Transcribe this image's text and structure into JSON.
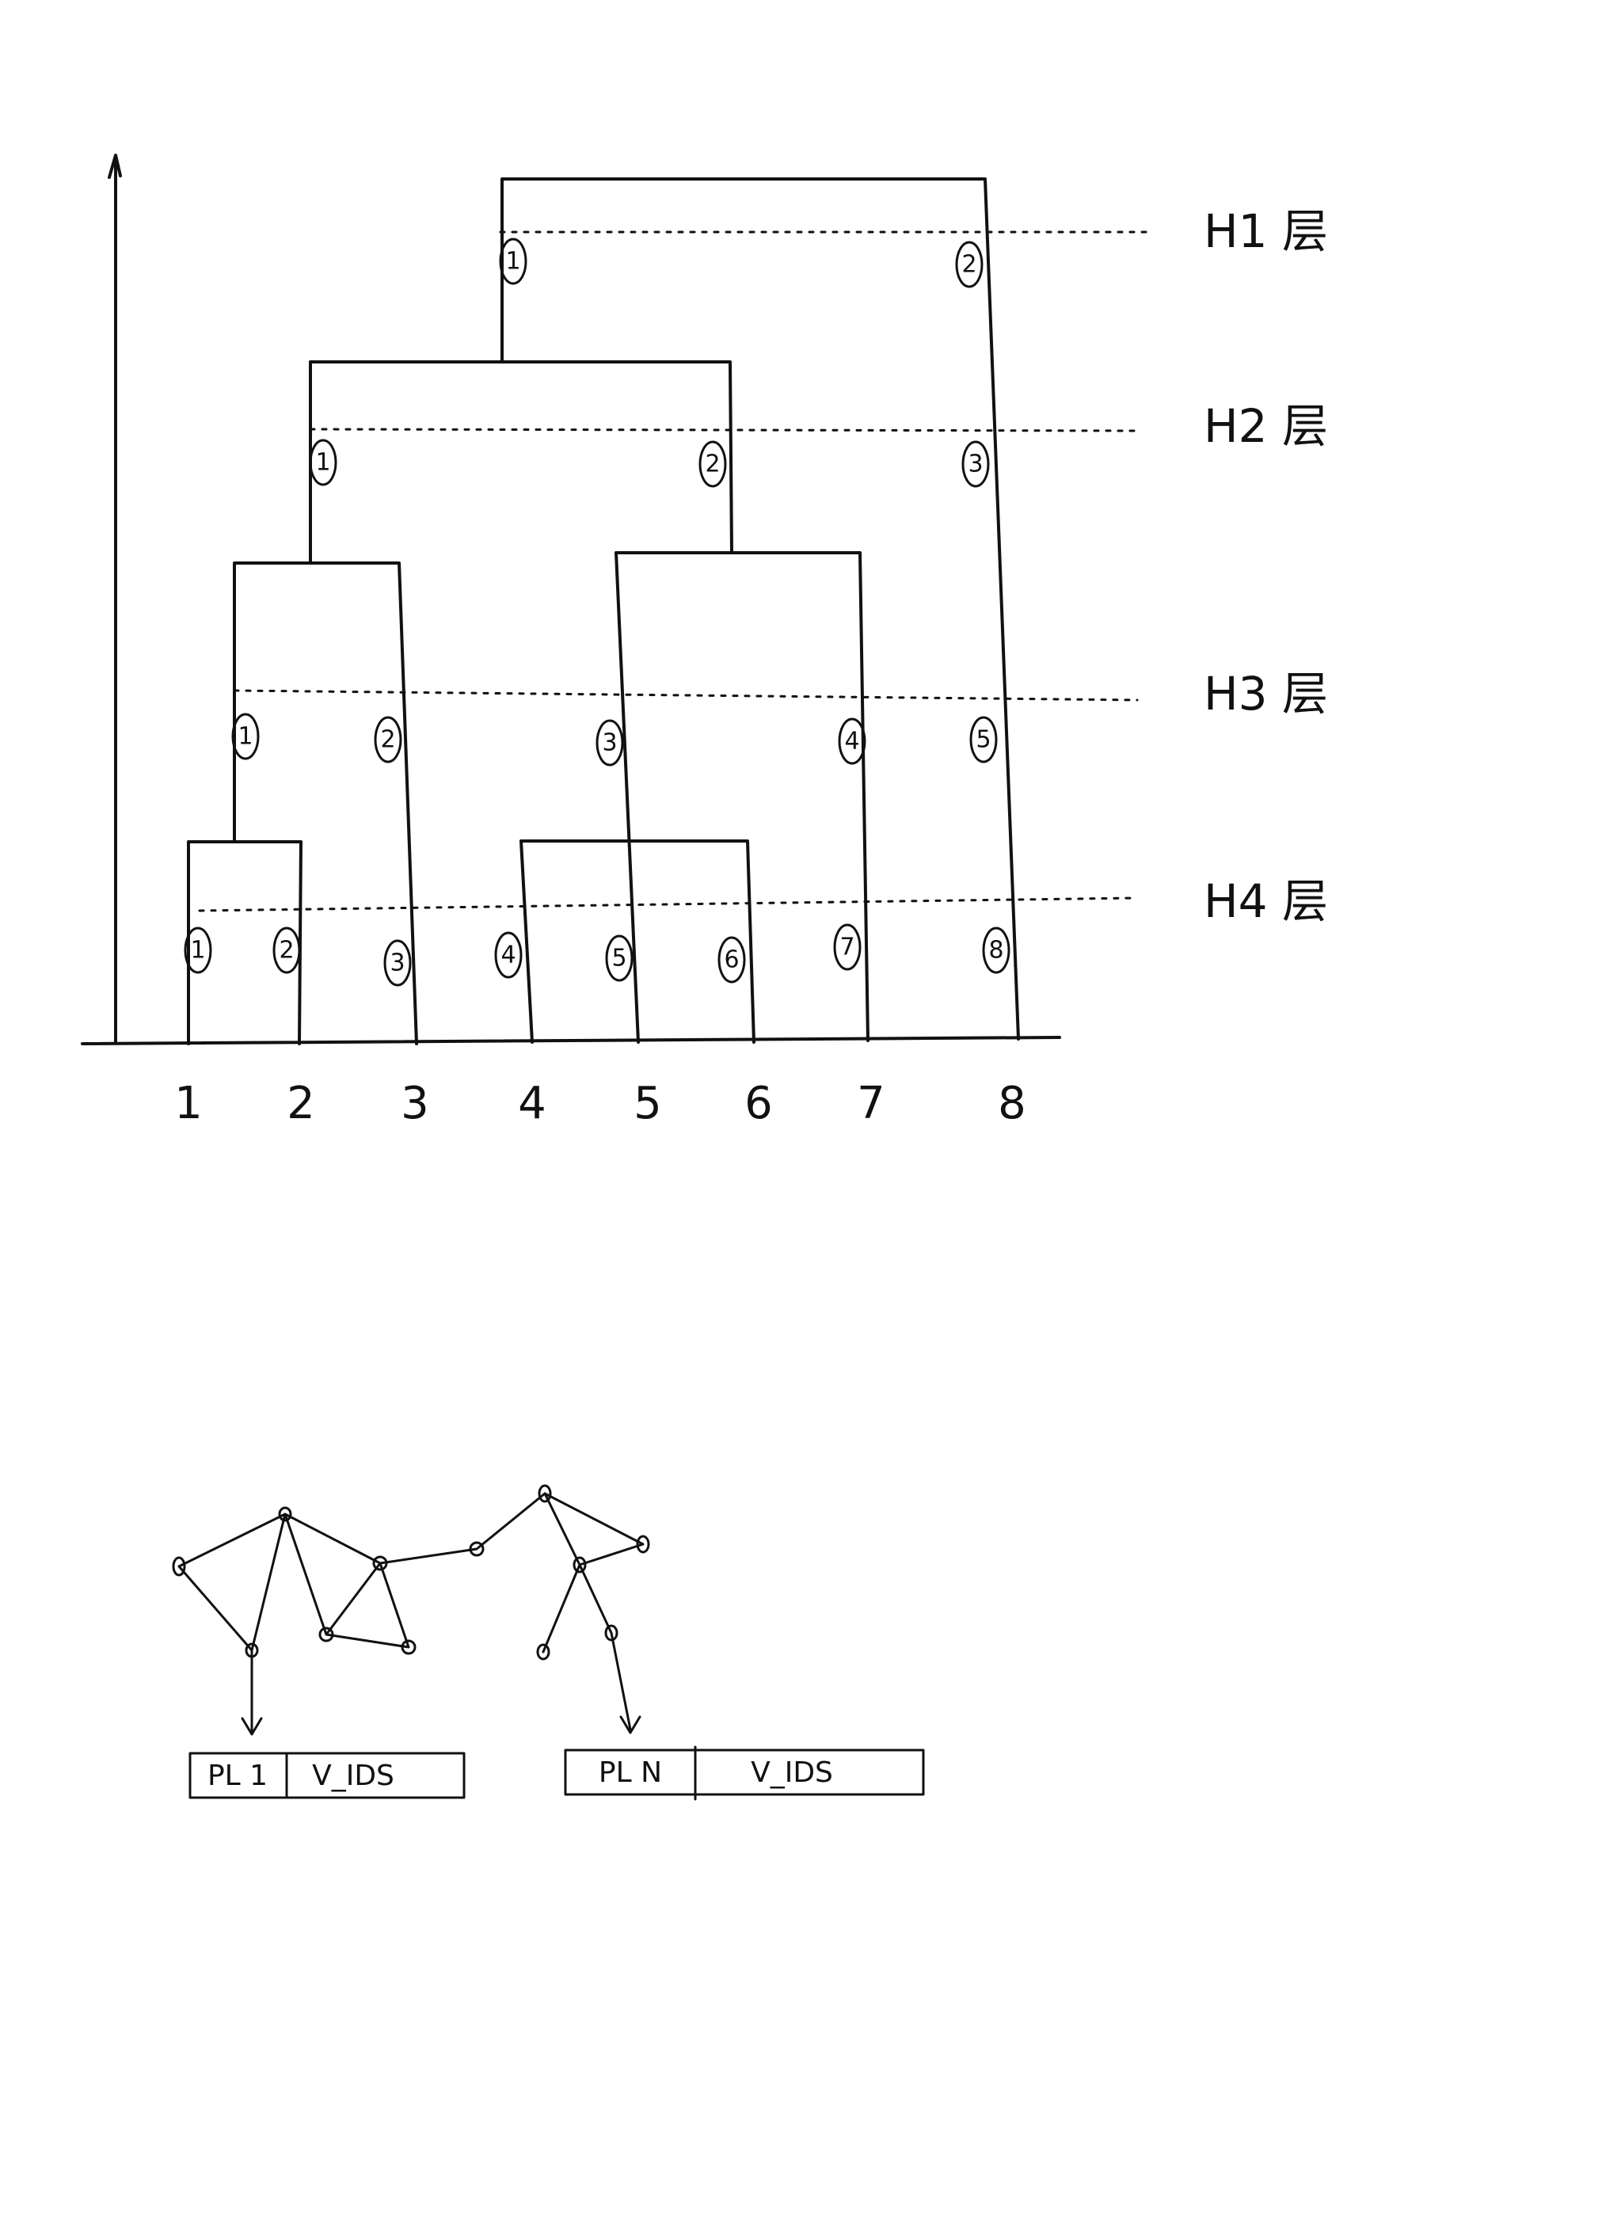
{
  "colors": {
    "ink": "#111111",
    "paper": "#ffffff"
  },
  "levels": [
    {
      "id": "H1",
      "label": "H1 层",
      "members": [
        "1",
        "2"
      ]
    },
    {
      "id": "H2",
      "label": "H2 层",
      "members": [
        "1",
        "2",
        "3"
      ]
    },
    {
      "id": "H3",
      "label": "H3 层",
      "members": [
        "1",
        "2",
        "3",
        "4",
        "5"
      ]
    },
    {
      "id": "H4",
      "label": "H4 层",
      "members": [
        "1",
        "2",
        "3",
        "4",
        "5",
        "6",
        "7",
        "8"
      ]
    }
  ],
  "leaves": [
    "1",
    "2",
    "3",
    "4",
    "5",
    "6",
    "7",
    "8"
  ],
  "tables": [
    {
      "id": "pl1",
      "key": "PL 1",
      "value": "V_IDS"
    },
    {
      "id": "pln",
      "key": "PL N",
      "value": "V_IDS"
    }
  ]
}
